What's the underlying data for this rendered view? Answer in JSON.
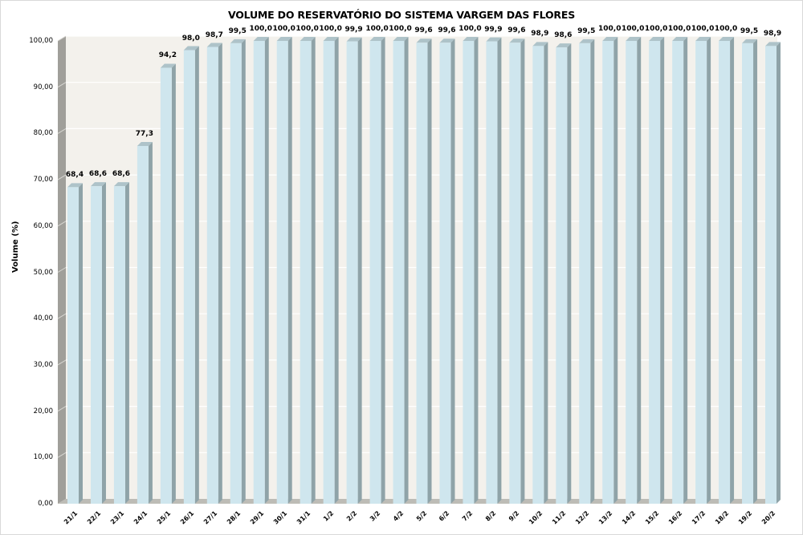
{
  "chart_data": {
    "type": "bar",
    "style": "3d-column",
    "title": "VOLUME DO RESERVATÓRIO DO SISTEMA VARGEM DAS FLORES",
    "xlabel": "",
    "ylabel": "Volume (%)",
    "ylim": [
      0,
      100
    ],
    "y_ticks": [
      "0,00",
      "10,00",
      "20,00",
      "30,00",
      "40,00",
      "50,00",
      "60,00",
      "70,00",
      "80,00",
      "90,00",
      "100,00"
    ],
    "grid": true,
    "legend": null,
    "categories": [
      "21/1",
      "22/1",
      "23/1",
      "24/1",
      "25/1",
      "26/1",
      "27/1",
      "28/1",
      "29/1",
      "30/1",
      "31/1",
      "1/2",
      "2/2",
      "3/2",
      "4/2",
      "5/2",
      "6/2",
      "7/2",
      "8/2",
      "9/2",
      "10/2",
      "11/2",
      "12/2",
      "13/2",
      "14/2",
      "15/2",
      "16/2",
      "17/2",
      "18/2",
      "19/2",
      "20/2"
    ],
    "values": [
      68.4,
      68.6,
      68.6,
      77.3,
      94.2,
      98.0,
      98.7,
      99.5,
      100.0,
      100.0,
      100.0,
      100.0,
      99.9,
      100.0,
      100.0,
      99.6,
      99.6,
      100.0,
      99.9,
      99.6,
      98.9,
      98.6,
      99.5,
      100.0,
      100.0,
      100.0,
      100.0,
      100.0,
      100.0,
      99.5,
      98.9
    ],
    "data_labels": [
      "68,4",
      "68,6",
      "68,6",
      "77,3",
      "94,2",
      "98,0",
      "98,7",
      "99,5",
      "100,0",
      "100,0",
      "100,0",
      "100,0",
      "99,9",
      "100,0",
      "100,0",
      "99,6",
      "99,6",
      "100,0",
      "99,9",
      "99,6",
      "98,9",
      "98,6",
      "99,5",
      "100,0",
      "100,0",
      "100,0",
      "100,0",
      "100,0",
      "100,0",
      "99,5",
      "98,9"
    ],
    "colors": {
      "bar_front": "#cfe6ee",
      "bar_side": "#8fa3a8",
      "bar_top": "#aec3c9",
      "back_wall": "#f3f1ec",
      "side_wall": "#a09f9a",
      "floor": "#bdbcb6",
      "gridline": "#ffffff"
    }
  }
}
